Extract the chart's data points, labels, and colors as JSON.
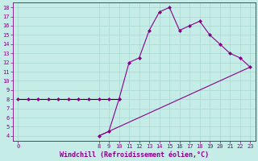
{
  "xlabel": "Windchill (Refroidissement éolien,°C)",
  "bg_color": "#c5ece6",
  "grid_color": "#a8d8d0",
  "line_color": "#880088",
  "line1_x": [
    0,
    1,
    2,
    3,
    4,
    5,
    6,
    7,
    8,
    9,
    10
  ],
  "line1_y": [
    8,
    8,
    8,
    8,
    8,
    8,
    8,
    8,
    8,
    8,
    8
  ],
  "line2_x": [
    8,
    9,
    10,
    11,
    12,
    13,
    14,
    15,
    16,
    17,
    18,
    19,
    20,
    21,
    22,
    23
  ],
  "line2_y": [
    4,
    4.5,
    8,
    12,
    12.5,
    15.5,
    17.5,
    18,
    15.5,
    16,
    16.5,
    15,
    14,
    13,
    12.5,
    11.5
  ],
  "line3_x": [
    8,
    23
  ],
  "line3_y": [
    4,
    11.5
  ],
  "xlim": [
    -0.5,
    23.5
  ],
  "ylim": [
    3.5,
    18.5
  ],
  "xtick_positions": [
    0,
    8,
    9,
    10,
    11,
    12,
    13,
    14,
    15,
    16,
    17,
    18,
    19,
    20,
    21,
    22,
    23
  ],
  "ytick_positions": [
    4,
    5,
    6,
    7,
    8,
    9,
    10,
    11,
    12,
    13,
    14,
    15,
    16,
    17,
    18
  ],
  "tick_fontsize": 5.0,
  "xlabel_fontsize": 6.0,
  "lw": 0.8,
  "markersize": 2.0
}
